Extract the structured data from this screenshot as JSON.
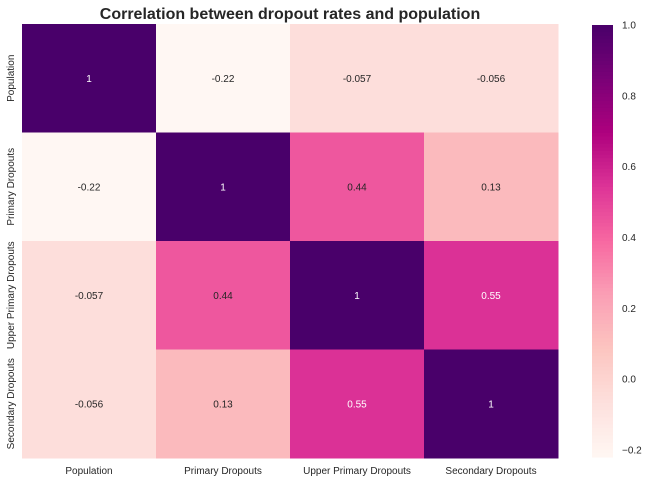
{
  "chart_data": {
    "type": "heatmap",
    "title": "Correlation between dropout rates and population",
    "colormap": "RdPu",
    "vmin": -0.22,
    "vmax": 1.0,
    "row_labels": [
      "Population",
      "Primary Dropouts",
      "Upper Primary Dropouts",
      "Secondary Dropouts"
    ],
    "col_labels": [
      "Population",
      "Primary Dropouts",
      "Upper Primary Dropouts",
      "Secondary Dropouts"
    ],
    "values": [
      [
        1,
        -0.22,
        -0.057,
        -0.056
      ],
      [
        -0.22,
        1,
        0.44,
        0.13
      ],
      [
        -0.057,
        0.44,
        1,
        0.55
      ],
      [
        -0.056,
        0.13,
        0.55,
        1
      ]
    ],
    "annotations": [
      [
        "1",
        "-0.22",
        "-0.057",
        "-0.056"
      ],
      [
        "-0.22",
        "1",
        "0.44",
        "0.13"
      ],
      [
        "-0.057",
        "0.44",
        "1",
        "0.55"
      ],
      [
        "-0.056",
        "0.13",
        "0.55",
        "1"
      ]
    ],
    "colorbar_ticks": [
      1.0,
      0.8,
      0.6,
      0.4,
      0.2,
      0.0,
      -0.2
    ],
    "colorbar_tick_labels": [
      "1.0",
      "0.8",
      "0.6",
      "0.4",
      "0.2",
      "0.0",
      "−0.2"
    ]
  }
}
